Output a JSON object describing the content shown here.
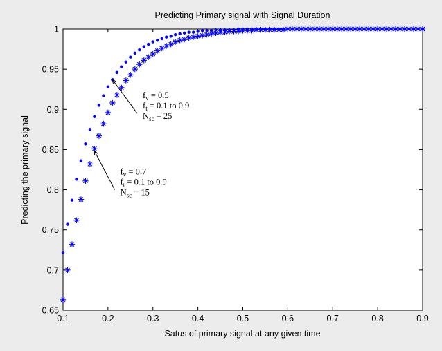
{
  "chart_data": {
    "type": "scatter",
    "title": "Predicting Primary signal with Signal Duration",
    "xlabel": "Satus of primary signal at any given time",
    "ylabel": "Predicting the primary signal",
    "xlim": [
      0.1,
      0.9
    ],
    "ylim": [
      0.65,
      1.0
    ],
    "xticks": [
      "0.1",
      "0.2",
      "0.3",
      "0.4",
      "0.5",
      "0.6",
      "0.7",
      "0.8",
      "0.9"
    ],
    "yticks": [
      "0.65",
      "0.7",
      "0.75",
      "0.8",
      "0.85",
      "0.9",
      "0.95",
      "1"
    ],
    "grid": false,
    "series": [
      {
        "marker": "dot",
        "color": "#0000ff",
        "x": [
          0.1,
          0.11,
          0.12,
          0.13,
          0.14,
          0.15,
          0.16,
          0.17,
          0.18,
          0.19,
          0.2,
          0.21,
          0.22,
          0.23,
          0.24,
          0.25,
          0.26,
          0.27,
          0.28,
          0.29,
          0.3,
          0.31,
          0.32,
          0.33,
          0.34,
          0.35,
          0.36,
          0.37,
          0.38,
          0.39,
          0.4,
          0.41,
          0.42,
          0.43,
          0.44,
          0.45,
          0.46,
          0.47,
          0.48,
          0.49,
          0.5,
          0.51,
          0.52,
          0.53,
          0.54,
          0.55,
          0.56,
          0.57,
          0.58,
          0.59,
          0.6,
          0.61,
          0.62,
          0.63,
          0.64,
          0.65,
          0.66,
          0.67,
          0.68,
          0.69,
          0.7,
          0.71,
          0.72,
          0.73,
          0.74,
          0.75,
          0.76,
          0.77,
          0.78,
          0.79,
          0.8,
          0.81,
          0.82,
          0.83,
          0.84,
          0.85,
          0.86,
          0.87,
          0.88,
          0.89,
          0.9
        ],
        "y": [
          0.722,
          0.757,
          0.787,
          0.813,
          0.836,
          0.857,
          0.875,
          0.891,
          0.905,
          0.917,
          0.928,
          0.937,
          0.946,
          0.953,
          0.959,
          0.965,
          0.97,
          0.974,
          0.978,
          0.981,
          0.984,
          0.986,
          0.988,
          0.99,
          0.991,
          0.993,
          0.994,
          0.995,
          0.996,
          0.996,
          0.997,
          0.998,
          0.998,
          0.998,
          0.999,
          0.999,
          0.999,
          0.999,
          0.999,
          1.0,
          1.0,
          1.0,
          1.0,
          1.0,
          1.0,
          1.0,
          1.0,
          1.0,
          1.0,
          1.0,
          1.0,
          1.0,
          1.0,
          1.0,
          1.0,
          1.0,
          1.0,
          1.0,
          1.0,
          1.0,
          1.0,
          1.0,
          1.0,
          1.0,
          1.0,
          1.0,
          1.0,
          1.0,
          1.0,
          1.0,
          1.0,
          1.0,
          1.0,
          1.0,
          1.0,
          1.0,
          1.0,
          1.0,
          1.0,
          1.0,
          1.0
        ]
      },
      {
        "marker": "asterisk",
        "color": "#0000ff",
        "x": [
          0.1,
          0.11,
          0.12,
          0.13,
          0.14,
          0.15,
          0.16,
          0.17,
          0.18,
          0.19,
          0.2,
          0.21,
          0.22,
          0.23,
          0.24,
          0.25,
          0.26,
          0.27,
          0.28,
          0.29,
          0.3,
          0.31,
          0.32,
          0.33,
          0.34,
          0.35,
          0.36,
          0.37,
          0.38,
          0.39,
          0.4,
          0.41,
          0.42,
          0.43,
          0.44,
          0.45,
          0.46,
          0.47,
          0.48,
          0.49,
          0.5,
          0.51,
          0.52,
          0.53,
          0.54,
          0.55,
          0.56,
          0.57,
          0.58,
          0.59,
          0.6,
          0.61,
          0.62,
          0.63,
          0.64,
          0.65,
          0.66,
          0.67,
          0.68,
          0.69,
          0.7,
          0.71,
          0.72,
          0.73,
          0.74,
          0.75,
          0.76,
          0.77,
          0.78,
          0.79,
          0.8,
          0.81,
          0.82,
          0.83,
          0.84,
          0.85,
          0.86,
          0.87,
          0.88,
          0.89,
          0.9
        ],
        "y": [
          0.663,
          0.7,
          0.732,
          0.762,
          0.788,
          0.811,
          0.832,
          0.851,
          0.867,
          0.882,
          0.896,
          0.908,
          0.918,
          0.927,
          0.936,
          0.943,
          0.95,
          0.956,
          0.961,
          0.965,
          0.969,
          0.973,
          0.976,
          0.979,
          0.981,
          0.984,
          0.986,
          0.987,
          0.989,
          0.99,
          0.991,
          0.992,
          0.993,
          0.994,
          0.995,
          0.996,
          0.996,
          0.997,
          0.997,
          0.997,
          0.998,
          0.998,
          0.998,
          0.999,
          0.999,
          0.999,
          0.999,
          0.999,
          0.999,
          0.999,
          1.0,
          1.0,
          1.0,
          1.0,
          1.0,
          1.0,
          1.0,
          1.0,
          1.0,
          1.0,
          1.0,
          1.0,
          1.0,
          1.0,
          1.0,
          1.0,
          1.0,
          1.0,
          1.0,
          1.0,
          1.0,
          1.0,
          1.0,
          1.0,
          1.0,
          1.0,
          1.0,
          1.0,
          1.0,
          1.0,
          1.0
        ]
      }
    ],
    "annotations": [
      {
        "lines": [
          {
            "main": "f",
            "sub": "v",
            "rest": " = 0.5"
          },
          {
            "main": "f",
            "sub": "t",
            "rest": " = 0.1 to 0.9"
          },
          {
            "main": "N",
            "sub": "sc",
            "rest": " = 25"
          }
        ],
        "arrow_from": [
          0.265,
          0.895
        ],
        "arrow_to": [
          0.21,
          0.937
        ]
      },
      {
        "lines": [
          {
            "main": "f",
            "sub": "v",
            "rest": " = 0.7"
          },
          {
            "main": "f",
            "sub": "t",
            "rest": " = 0.1 to 0.9"
          },
          {
            "main": "N",
            "sub": "sc",
            "rest": " = 15"
          }
        ],
        "arrow_from": [
          0.215,
          0.8
        ],
        "arrow_to": [
          0.17,
          0.848
        ]
      }
    ]
  }
}
